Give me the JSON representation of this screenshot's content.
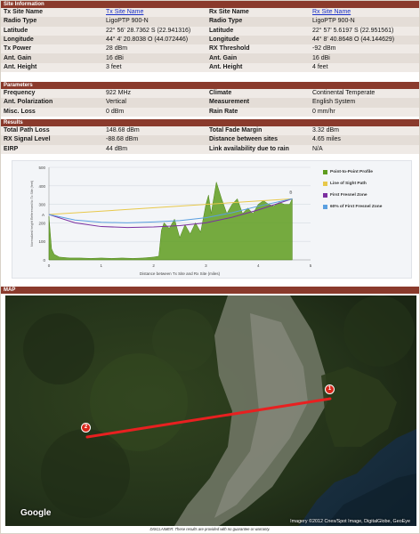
{
  "site_information": {
    "header": "Site Information",
    "rows": [
      {
        "l1": "Tx Site Name",
        "v1": "Tx Site Name",
        "l2": "Rx Site Name",
        "v2": "Rx Site Name"
      },
      {
        "l1": "Radio Type",
        "v1": "LigoPTP 900-N",
        "l2": "Radio Type",
        "v2": "LigoPTP 900-N"
      },
      {
        "l1": "Latitude",
        "v1": "22° 56' 28.7362 S (22.941316)",
        "l2": "Latitude",
        "v2": "22° 57' 5.6197 S (22.951561)"
      },
      {
        "l1": "Longitude",
        "v1": "44° 4' 20.8038 O (44.072446)",
        "l2": "Longitude",
        "v2": "44° 8' 40.8648 O (44.144629)"
      },
      {
        "l1": "Tx Power",
        "v1": "28 dBm",
        "l2": "RX Threshold",
        "v2": "-92 dBm"
      },
      {
        "l1": "Ant. Gain",
        "v1": "16 dBi",
        "l2": "Ant. Gain",
        "v2": "16 dBi"
      },
      {
        "l1": "Ant. Height",
        "v1": "3 feet",
        "l2": "Ant. Height",
        "v2": "4 feet"
      }
    ]
  },
  "parameters": {
    "header": "Parameters",
    "rows": [
      {
        "l1": "Frequency",
        "v1": "922 MHz",
        "l2": "Climate",
        "v2": "Continental Temperate"
      },
      {
        "l1": "Ant. Polarization",
        "v1": "Vertical",
        "l2": "Measurement",
        "v2": "English System"
      },
      {
        "l1": "Misc. Loss",
        "v1": "0 dBm",
        "l2": "Rain Rate",
        "v2": "0 mm/hr"
      }
    ]
  },
  "results": {
    "header": "Results",
    "rows": [
      {
        "l1": "Total Path Loss",
        "v1": "148.68 dBm",
        "l2": "Total Fade Margin",
        "v2": "3.32 dBm"
      },
      {
        "l1": "RX Signal Level",
        "v1": "-88.68 dBm",
        "l2": "Distance between sites",
        "v2": "4.65 miles"
      },
      {
        "l1": "EIRP",
        "v1": "44 dBm",
        "l2": "Link availability due to rain",
        "v2": "N/A"
      }
    ]
  },
  "chart_data": {
    "type": "area",
    "title": "",
    "xlabel": "Distance between Tx Site and Rx Site (miles)",
    "ylabel": "Normalized height Referenced to Tx Site (feet)",
    "xlim": [
      0,
      5
    ],
    "ylim": [
      0,
      500
    ],
    "x_ticks": [
      "0",
      "1",
      "2",
      "3",
      "4",
      "5"
    ],
    "y_ticks": [
      "0",
      "100",
      "200",
      "300",
      "400",
      "500"
    ],
    "endpoints": {
      "a_label": "A",
      "b_label": "B"
    },
    "legend": [
      {
        "name": "Point-to-Point Profile",
        "color": "#5e9c1e"
      },
      {
        "name": "Line of Sight Path",
        "color": "#e8c84a"
      },
      {
        "name": "First Fresnel Zone",
        "color": "#7b2fa0"
      },
      {
        "name": "60% of First Fresnel Zone",
        "color": "#5a9fe0"
      }
    ],
    "series": [
      {
        "name": "Point-to-Point Profile",
        "x": [
          0,
          0.05,
          0.1,
          0.2,
          0.4,
          0.6,
          0.8,
          1.0,
          1.2,
          1.4,
          1.6,
          1.8,
          2.0,
          2.1,
          2.15,
          2.2,
          2.3,
          2.4,
          2.5,
          2.6,
          2.7,
          2.8,
          2.9,
          3.0,
          3.05,
          3.1,
          3.2,
          3.3,
          3.4,
          3.5,
          3.6,
          3.7,
          3.8,
          3.9,
          4.0,
          4.1,
          4.2,
          4.3,
          4.4,
          4.5,
          4.6,
          4.65
        ],
        "y": [
          235,
          60,
          30,
          15,
          10,
          10,
          8,
          10,
          8,
          10,
          8,
          10,
          15,
          20,
          160,
          200,
          170,
          220,
          120,
          190,
          140,
          200,
          150,
          300,
          350,
          250,
          420,
          330,
          250,
          300,
          330,
          250,
          280,
          250,
          300,
          320,
          300,
          290,
          310,
          300,
          300,
          330
        ]
      },
      {
        "name": "Line of Sight Path",
        "x": [
          0,
          4.65
        ],
        "y": [
          245,
          330
        ]
      },
      {
        "name": "First Fresnel Zone",
        "x": [
          0,
          0.5,
          1,
          1.5,
          2,
          2.5,
          3,
          3.5,
          4,
          4.65
        ],
        "y": [
          245,
          200,
          180,
          175,
          178,
          185,
          200,
          230,
          270,
          330
        ]
      },
      {
        "name": "60% of First Fresnel Zone",
        "x": [
          0,
          0.5,
          1,
          1.5,
          2,
          2.5,
          3,
          3.5,
          4,
          4.65
        ],
        "y": [
          245,
          215,
          203,
          200,
          205,
          212,
          228,
          255,
          290,
          330
        ]
      }
    ]
  },
  "map": {
    "header": "MAP",
    "pin1": "1",
    "pin2": "2",
    "logo": "Google",
    "credits": "Imagery ©2012 Cnes/Spot Image, DigitalGlobe, GeoEye",
    "link_color": "#e82020"
  },
  "disclaimer": "DISCLAIMER: These results are provided with no guarantee or warranty."
}
